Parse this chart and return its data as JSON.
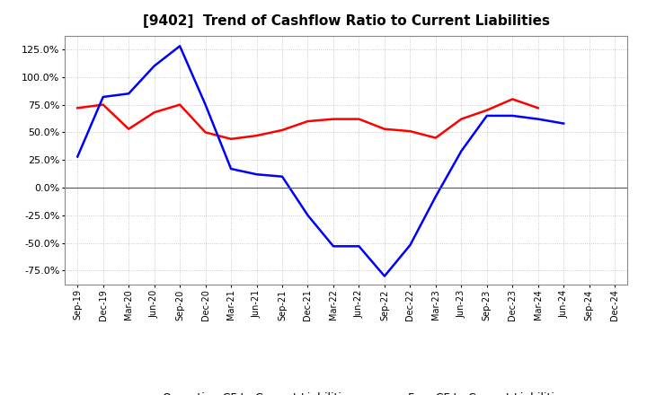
{
  "title": "[9402]  Trend of Cashflow Ratio to Current Liabilities",
  "x_labels": [
    "Sep-19",
    "Dec-19",
    "Mar-20",
    "Jun-20",
    "Sep-20",
    "Dec-20",
    "Mar-21",
    "Jun-21",
    "Sep-21",
    "Dec-21",
    "Mar-22",
    "Jun-22",
    "Sep-22",
    "Dec-22",
    "Mar-23",
    "Jun-23",
    "Sep-23",
    "Dec-23",
    "Mar-24",
    "Jun-24",
    "Sep-24",
    "Dec-24"
  ],
  "operating_cf": [
    72,
    75,
    53,
    68,
    75,
    50,
    44,
    47,
    52,
    60,
    62,
    62,
    53,
    51,
    45,
    62,
    70,
    80,
    72,
    null,
    null,
    null
  ],
  "free_cf": [
    28,
    82,
    85,
    110,
    128,
    75,
    17,
    12,
    10,
    -25,
    -53,
    -53,
    -80,
    -52,
    -8,
    33,
    65,
    65,
    62,
    58,
    null,
    null
  ],
  "operating_color": "#ff0000",
  "free_color": "#0000ff",
  "bg_color": "#ffffff",
  "plot_bg_color": "#ffffff",
  "ylim": [
    -87.5,
    137.5
  ],
  "yticks": [
    -75,
    -50,
    -25,
    0,
    25,
    50,
    75,
    100,
    125
  ],
  "title_fontsize": 11,
  "legend_fontsize": 9
}
